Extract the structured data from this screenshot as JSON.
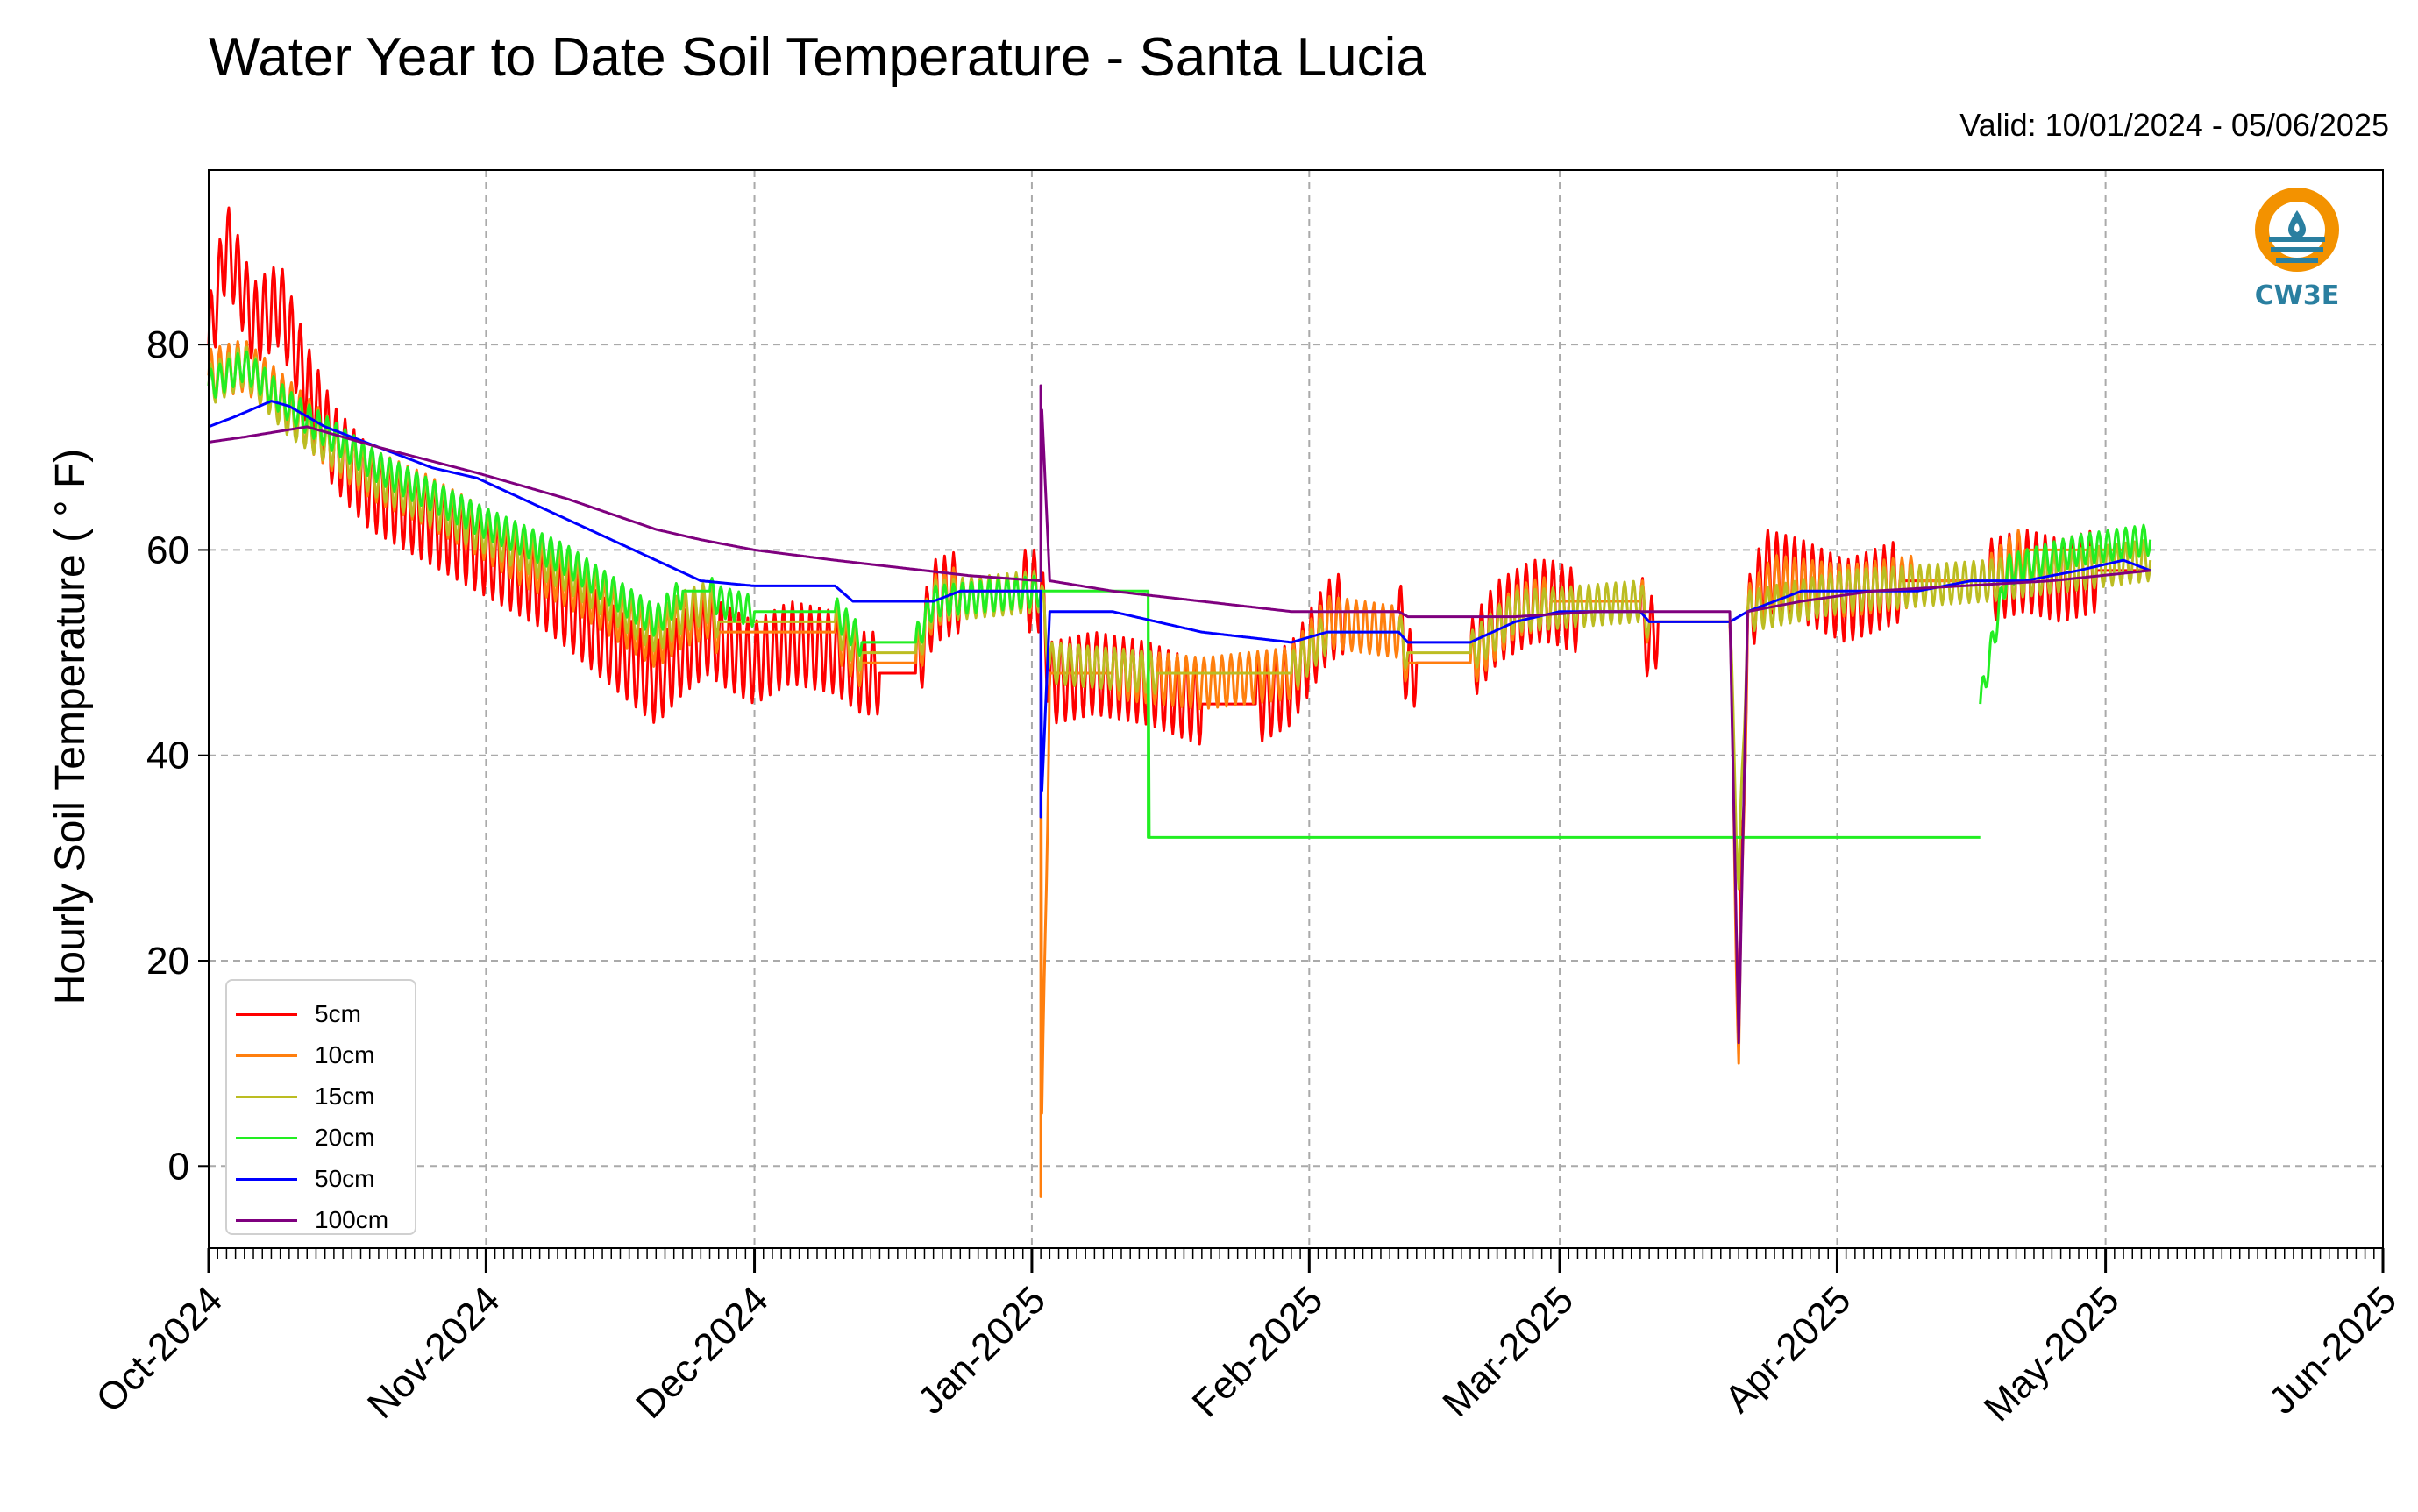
{
  "title": "Water Year to Date Soil Temperature - Santa Lucia",
  "valid_range": "Valid: 10/01/2024 - 05/06/2025",
  "logo_text": "CW3E",
  "colors": {
    "5cm": "#ff0000",
    "10cm": "#ff7f0e",
    "15cm": "#bcbd22",
    "20cm": "#22ee22",
    "50cm": "#0000ff",
    "100cm": "#7f007f",
    "logo_orange": "#f39200",
    "logo_blue": "#2a7fa0"
  },
  "chart_data": {
    "type": "line",
    "title": "Water Year to Date Soil Temperature - Santa Lucia",
    "xlabel": "",
    "ylabel": "Hourly Soil Temperature ( ° F)",
    "xlim": [
      "2024-10-01",
      "2025-06-01"
    ],
    "ylim": [
      -8,
      97
    ],
    "y_ticks": [
      0,
      20,
      40,
      60,
      80
    ],
    "x_ticks": [
      "Oct-2024",
      "Nov-2024",
      "Dec-2024",
      "Jan-2025",
      "Feb-2025",
      "Mar-2025",
      "Apr-2025",
      "May-2025",
      "Jun-2025"
    ],
    "grid": true,
    "legend_position": "lower-left",
    "series": [
      {
        "name": "5cm",
        "points": [
          [
            "2024-10-01",
            80
          ],
          [
            "2024-10-03",
            90
          ],
          [
            "2024-10-06",
            82
          ],
          [
            "2024-10-09",
            84
          ],
          [
            "2024-10-12",
            76
          ],
          [
            "2024-10-15",
            70
          ],
          [
            "2024-10-19",
            66
          ],
          [
            "2024-10-23",
            64
          ],
          [
            "2024-10-27",
            62
          ],
          [
            "2024-10-31",
            60
          ],
          [
            "2024-11-04",
            58
          ],
          [
            "2024-11-08",
            56
          ],
          [
            "2024-11-12",
            53
          ],
          [
            "2024-11-16",
            50
          ],
          [
            "2024-11-20",
            47
          ],
          [
            "2024-11-23",
            50
          ],
          [
            "2024-11-26",
            52
          ],
          [
            "2024-11-27",
            51
          ],
          [
            "2024-12-01",
            49
          ],
          [
            "2024-12-05",
            51
          ],
          [
            "2024-12-10",
            50
          ],
          [
            "2024-12-13",
            48
          ],
          [
            "2024-12-15",
            48
          ],
          [
            "2024-12-19",
            48
          ],
          [
            "2024-12-21",
            55
          ],
          [
            "2024-12-24",
            56
          ],
          [
            "2024-12-31",
            56
          ],
          [
            "2025-01-02",
            56
          ],
          [
            "2025-01-03",
            47
          ],
          [
            "2025-01-08",
            48
          ],
          [
            "2025-01-14",
            47
          ],
          [
            "2025-01-20",
            45
          ],
          [
            "2025-01-26",
            45
          ],
          [
            "2025-01-30",
            47
          ],
          [
            "2025-02-01",
            50
          ],
          [
            "2025-02-03",
            53
          ],
          [
            "2025-02-05",
            54
          ],
          [
            "2025-02-11",
            54
          ],
          [
            "2025-02-12",
            48
          ],
          [
            "2025-02-13",
            49
          ],
          [
            "2025-02-19",
            49
          ],
          [
            "2025-02-22",
            53
          ],
          [
            "2025-02-26",
            55
          ],
          [
            "2025-02-28",
            55
          ],
          [
            "2025-03-03",
            54
          ],
          [
            "2025-03-10",
            54
          ],
          [
            "2025-03-11",
            51
          ],
          [
            "2025-03-12",
            53
          ],
          [
            "2025-03-20",
            53
          ],
          [
            "2025-03-21",
            15
          ],
          [
            "2025-03-22",
            53
          ],
          [
            "2025-03-24",
            58
          ],
          [
            "2025-03-28",
            57
          ],
          [
            "2025-04-02",
            55
          ],
          [
            "2025-04-08",
            57
          ],
          [
            "2025-04-14",
            57
          ],
          [
            "2025-04-18",
            57
          ],
          [
            "2025-04-22",
            58
          ],
          [
            "2025-04-26",
            57
          ],
          [
            "2025-04-30",
            58
          ],
          [
            "2025-05-06",
            58
          ]
        ],
        "daily_swing": 8
      },
      {
        "name": "10cm",
        "points": [
          [
            "2024-10-01",
            77
          ],
          [
            "2024-10-05",
            78
          ],
          [
            "2024-10-10",
            74
          ],
          [
            "2024-10-15",
            70
          ],
          [
            "2024-10-20",
            67
          ],
          [
            "2024-10-25",
            65
          ],
          [
            "2024-10-31",
            62
          ],
          [
            "2024-11-05",
            59
          ],
          [
            "2024-11-10",
            57
          ],
          [
            "2024-11-15",
            54
          ],
          [
            "2024-11-20",
            51
          ],
          [
            "2024-11-23",
            53
          ],
          [
            "2024-11-26",
            54
          ],
          [
            "2024-11-27",
            52
          ],
          [
            "2024-12-01",
            52
          ],
          [
            "2024-12-10",
            52
          ],
          [
            "2024-12-13",
            49
          ],
          [
            "2024-12-19",
            49
          ],
          [
            "2024-12-21",
            55
          ],
          [
            "2024-12-24",
            56
          ],
          [
            "2025-01-02",
            56
          ],
          [
            "2025-01-02",
            -3
          ],
          [
            "2025-01-03",
            48
          ],
          [
            "2025-01-10",
            48
          ],
          [
            "2025-01-20",
            47
          ],
          [
            "2025-01-30",
            48
          ],
          [
            "2025-02-03",
            53
          ],
          [
            "2025-02-11",
            52
          ],
          [
            "2025-02-12",
            49
          ],
          [
            "2025-02-19",
            49
          ],
          [
            "2025-02-24",
            54
          ],
          [
            "2025-02-28",
            55
          ],
          [
            "2025-03-10",
            55
          ],
          [
            "2025-03-11",
            53
          ],
          [
            "2025-03-20",
            53
          ],
          [
            "2025-03-21",
            10
          ],
          [
            "2025-03-22",
            54
          ],
          [
            "2025-03-25",
            57
          ],
          [
            "2025-04-02",
            56
          ],
          [
            "2025-04-10",
            57
          ],
          [
            "2025-04-18",
            57
          ],
          [
            "2025-04-22",
            60
          ],
          [
            "2025-04-28",
            60
          ],
          [
            "2025-05-06",
            60
          ]
        ],
        "daily_swing": 5
      },
      {
        "name": "15cm",
        "points": [
          [
            "2024-10-01",
            76
          ],
          [
            "2024-10-05",
            78
          ],
          [
            "2024-10-10",
            73
          ],
          [
            "2024-10-20",
            67
          ],
          [
            "2024-10-31",
            62
          ],
          [
            "2024-11-10",
            58
          ],
          [
            "2024-11-20",
            52
          ],
          [
            "2024-11-23",
            54
          ],
          [
            "2024-11-26",
            55
          ],
          [
            "2024-11-27",
            53
          ],
          [
            "2024-12-01",
            53
          ],
          [
            "2024-12-10",
            53
          ],
          [
            "2024-12-13",
            50
          ],
          [
            "2024-12-19",
            50
          ],
          [
            "2024-12-21",
            55
          ],
          [
            "2025-01-02",
            56
          ],
          [
            "2025-01-03",
            49
          ],
          [
            "2025-01-15",
            48
          ],
          [
            "2025-01-30",
            48
          ],
          [
            "2025-02-03",
            52
          ],
          [
            "2025-02-11",
            52
          ],
          [
            "2025-02-12",
            50
          ],
          [
            "2025-02-19",
            50
          ],
          [
            "2025-02-24",
            54
          ],
          [
            "2025-03-10",
            55
          ],
          [
            "2025-03-11",
            53
          ],
          [
            "2025-03-20",
            53
          ],
          [
            "2025-03-21",
            27
          ],
          [
            "2025-03-22",
            54
          ],
          [
            "2025-04-02",
            56
          ],
          [
            "2025-04-18",
            57
          ],
          [
            "2025-05-06",
            59
          ]
        ],
        "daily_swing": 4
      },
      {
        "name": "20cm",
        "points": [
          [
            "2024-10-01",
            76
          ],
          [
            "2024-10-05",
            78
          ],
          [
            "2024-10-10",
            74
          ],
          [
            "2024-10-20",
            68
          ],
          [
            "2024-10-31",
            63
          ],
          [
            "2024-11-10",
            59
          ],
          [
            "2024-11-20",
            53
          ],
          [
            "2024-11-23",
            56
          ],
          [
            "2024-11-26",
            56
          ],
          [
            "2024-11-27",
            55
          ],
          [
            "2024-12-01",
            54
          ],
          [
            "2024-12-10",
            54
          ],
          [
            "2024-12-13",
            51
          ],
          [
            "2024-12-19",
            51
          ],
          [
            "2024-12-21",
            55
          ],
          [
            "2025-01-02",
            56
          ],
          [
            "2025-01-14",
            56
          ],
          [
            "2025-01-14",
            32
          ],
          [
            "2025-04-17",
            32
          ]
        ],
        "segments_after_gap": [
          [
            "2025-04-17",
            45
          ],
          [
            "2025-04-20",
            58
          ],
          [
            "2025-04-28",
            60
          ],
          [
            "2025-05-06",
            61
          ]
        ],
        "daily_swing": 3
      },
      {
        "name": "50cm",
        "points": [
          [
            "2024-10-01",
            72
          ],
          [
            "2024-10-04",
            73
          ],
          [
            "2024-10-08",
            74.5
          ],
          [
            "2024-10-10",
            74
          ],
          [
            "2024-10-14",
            72
          ],
          [
            "2024-10-20",
            70
          ],
          [
            "2024-10-26",
            68
          ],
          [
            "2024-10-31",
            67
          ],
          [
            "2024-11-05",
            65
          ],
          [
            "2024-11-10",
            63
          ],
          [
            "2024-11-15",
            61
          ],
          [
            "2024-11-20",
            59
          ],
          [
            "2024-11-25",
            57
          ],
          [
            "2024-12-01",
            56.5
          ],
          [
            "2024-12-10",
            56.5
          ],
          [
            "2024-12-12",
            55
          ],
          [
            "2024-12-19",
            55
          ],
          [
            "2024-12-21",
            55
          ],
          [
            "2024-12-24",
            56
          ],
          [
            "2025-01-02",
            56
          ],
          [
            "2025-01-02",
            34
          ],
          [
            "2025-01-03",
            54
          ],
          [
            "2025-01-10",
            54
          ],
          [
            "2025-01-20",
            52
          ],
          [
            "2025-01-30",
            51
          ],
          [
            "2025-02-03",
            52
          ],
          [
            "2025-02-11",
            52
          ],
          [
            "2025-02-12",
            51
          ],
          [
            "2025-02-19",
            51
          ],
          [
            "2025-02-24",
            53
          ],
          [
            "2025-03-01",
            54
          ],
          [
            "2025-03-10",
            54
          ],
          [
            "2025-03-11",
            53
          ],
          [
            "2025-03-20",
            53
          ],
          [
            "2025-03-22",
            54
          ],
          [
            "2025-03-28",
            56
          ],
          [
            "2025-04-02",
            56
          ],
          [
            "2025-04-10",
            56
          ],
          [
            "2025-04-16",
            57
          ],
          [
            "2025-04-22",
            57
          ],
          [
            "2025-04-28",
            58
          ],
          [
            "2025-05-03",
            59
          ],
          [
            "2025-05-06",
            58
          ]
        ],
        "daily_swing": 0
      },
      {
        "name": "100cm",
        "points": [
          [
            "2024-10-01",
            70.5
          ],
          [
            "2024-10-05",
            71
          ],
          [
            "2024-10-12",
            72
          ],
          [
            "2024-10-20",
            70
          ],
          [
            "2024-10-31",
            67.5
          ],
          [
            "2024-11-10",
            65
          ],
          [
            "2024-11-20",
            62
          ],
          [
            "2024-11-25",
            61
          ],
          [
            "2024-12-01",
            60
          ],
          [
            "2024-12-10",
            59
          ],
          [
            "2024-12-20",
            58
          ],
          [
            "2024-12-25",
            57.5
          ],
          [
            "2025-01-02",
            57
          ],
          [
            "2025-01-02",
            76
          ],
          [
            "2025-01-03",
            57
          ],
          [
            "2025-01-10",
            56
          ],
          [
            "2025-01-20",
            55
          ],
          [
            "2025-01-30",
            54
          ],
          [
            "2025-02-03",
            54
          ],
          [
            "2025-02-11",
            54
          ],
          [
            "2025-02-12",
            53.5
          ],
          [
            "2025-02-19",
            53.5
          ],
          [
            "2025-02-24",
            53.5
          ],
          [
            "2025-03-05",
            54
          ],
          [
            "2025-03-10",
            54
          ],
          [
            "2025-03-20",
            54
          ],
          [
            "2025-03-21",
            12
          ],
          [
            "2025-03-22",
            54
          ],
          [
            "2025-03-28",
            55
          ],
          [
            "2025-04-05",
            56
          ],
          [
            "2025-04-15",
            56.5
          ],
          [
            "2025-04-25",
            57
          ],
          [
            "2025-05-06",
            58
          ]
        ],
        "daily_swing": 0
      }
    ]
  }
}
